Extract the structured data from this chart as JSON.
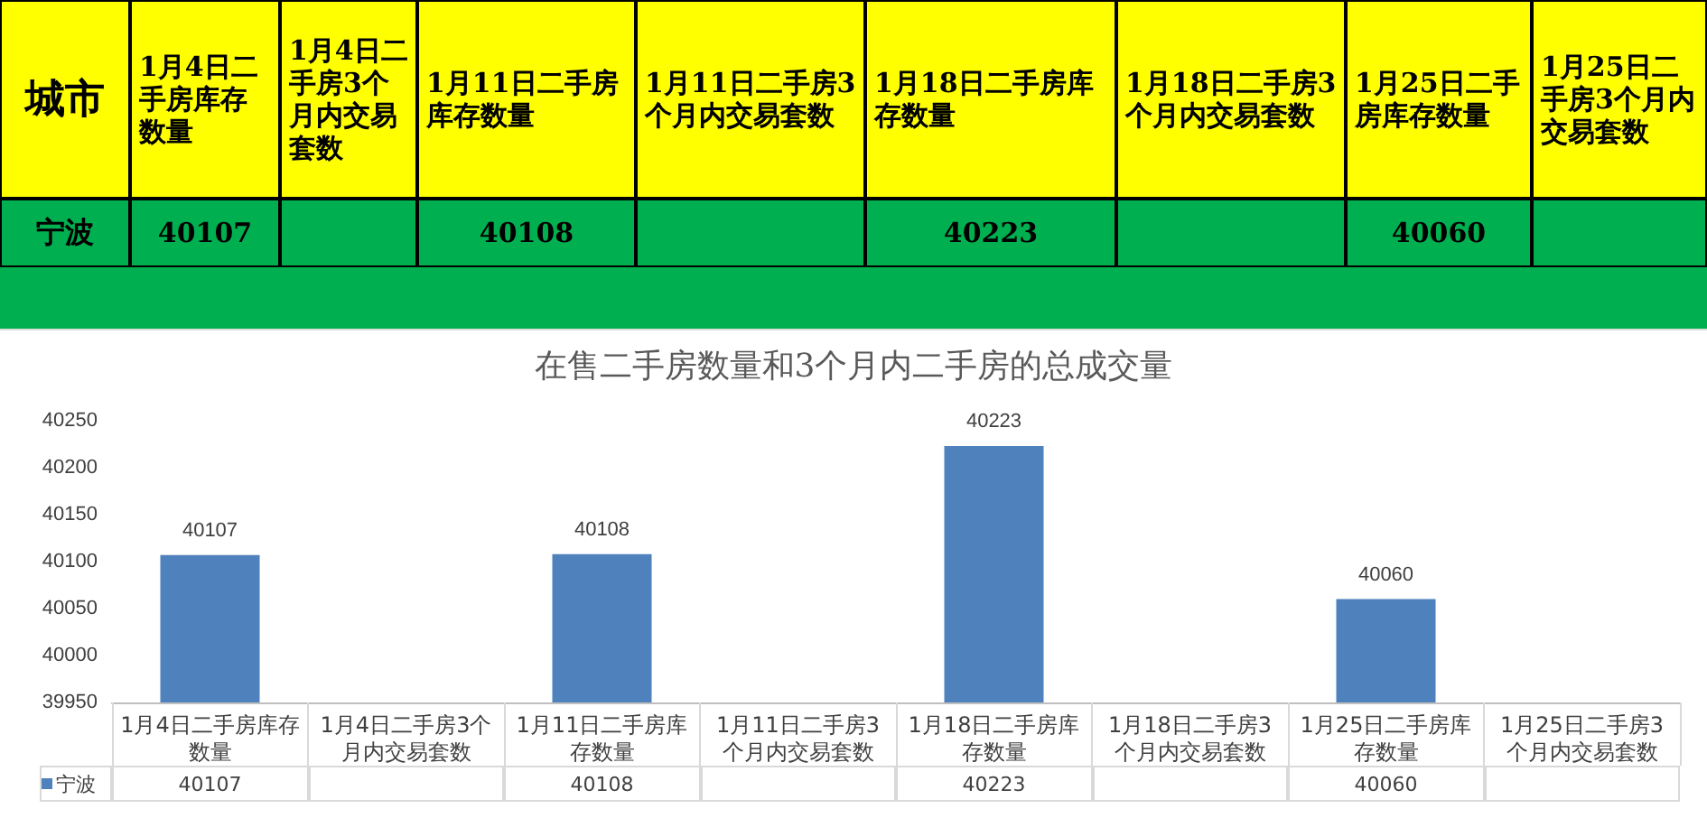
{
  "chart_data": {
    "type": "bar",
    "title": "在售二手房数量和3个月内二手房的总成交量",
    "legend_title": "城市",
    "categories": [
      "1月4日二手房库存数量",
      "1月4日二手房3个月内交易套数",
      "1月11日二手房库存数量",
      "1月11日二手房3个月内交易套数",
      "1月18日二手房库存数量",
      "1月18日二手房3个月内交易套数",
      "1月25日二手房库存数量",
      "1月25日二手房3个月内交易套数"
    ],
    "series": [
      {
        "name": "宁波",
        "color": "#4f81bd",
        "values": [
          40107,
          null,
          40108,
          null,
          40223,
          null,
          40060,
          null
        ],
        "value_labels": [
          "40107",
          null,
          "40108",
          null,
          "40223",
          null,
          "40060",
          null
        ]
      }
    ],
    "ylim": [
      39950,
      40250
    ],
    "yticks": [
      39950,
      40000,
      40050,
      40100,
      40150,
      40200,
      40250
    ],
    "grid": false,
    "legend": "bottom left"
  }
}
